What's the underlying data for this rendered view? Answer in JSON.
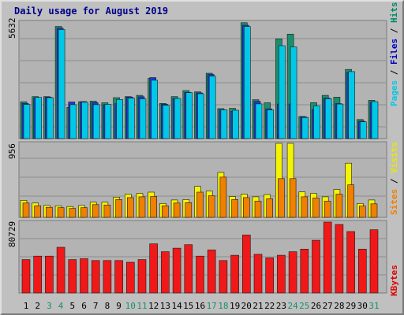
{
  "chart_data": {
    "type": "bar",
    "title": "Daily usage for August 2019",
    "categories": [
      "1",
      "2",
      "3",
      "4",
      "5",
      "6",
      "7",
      "8",
      "9",
      "10",
      "11",
      "12",
      "13",
      "14",
      "15",
      "16",
      "17",
      "18",
      "19",
      "20",
      "21",
      "22",
      "23",
      "24",
      "25",
      "26",
      "27",
      "28",
      "29",
      "30",
      "31"
    ],
    "weekend_days": [
      "3",
      "4",
      "10",
      "11",
      "17",
      "18",
      "24",
      "25",
      "31"
    ],
    "panels": [
      {
        "max_label": "5632",
        "ylim": [
          0,
          5632
        ],
        "grid": true,
        "legend": [
          {
            "text": "Pages",
            "color": "#00c8e8"
          },
          {
            "text": " / ",
            "color": "#000000"
          },
          {
            "text": "Files",
            "color": "#0000c0"
          },
          {
            "text": " / ",
            "color": "#000000"
          },
          {
            "text": "Hits",
            "color": "#008a68"
          }
        ],
        "series": [
          {
            "name": "Hits",
            "color": "#1a8f6e",
            "values": [
              1780,
              2030,
              2030,
              5420,
              1510,
              1780,
              1810,
              1730,
              1980,
              2030,
              2090,
              2910,
              1700,
              2030,
              2320,
              2260,
              3160,
              1450,
              1460,
              5600,
              1880,
              1730,
              4820,
              5050,
              1070,
              1740,
              2090,
              2000,
              3340,
              920,
              1850
            ]
          },
          {
            "name": "Files",
            "color": "#1a3ad8",
            "values": [
              1700,
              1970,
              2000,
              5340,
              1770,
              1790,
              1740,
              1640,
              1690,
              2010,
              2020,
              2950,
              1660,
              1940,
              2230,
              2210,
              3100,
              1390,
              1320,
              5480,
              1800,
              1440,
              1670,
              1670,
              1050,
              1400,
              1960,
              1690,
              3200,
              840,
              1760
            ]
          },
          {
            "name": "Pages",
            "color": "#00c8e8",
            "values": [
              1650,
              1990,
              1980,
              5270,
              1640,
              1760,
              1640,
              1650,
              1890,
              1960,
              1920,
              2820,
              1610,
              1940,
              2220,
              2170,
              3020,
              1390,
              1370,
              5420,
              1680,
              1390,
              4490,
              4430,
              1020,
              1570,
              1930,
              1670,
              3240,
              810,
              1790
            ]
          }
        ]
      },
      {
        "max_label": "956",
        "ylim": [
          0,
          956
        ],
        "grid": true,
        "legend": [
          {
            "text": "Sites",
            "color": "#f08000"
          },
          {
            "text": " / ",
            "color": "#000000"
          },
          {
            "text": "Visits",
            "color": "#e8e800"
          }
        ],
        "series": [
          {
            "name": "Visits",
            "color": "#f4f400",
            "values": [
              220,
              185,
              155,
              150,
              140,
              155,
              195,
              195,
              260,
              300,
              310,
              325,
              180,
              225,
              230,
              400,
              340,
              580,
              270,
              300,
              265,
              295,
              956,
              956,
              330,
              310,
              265,
              360,
              700,
              180,
              225
            ]
          },
          {
            "name": "Sites",
            "color": "#f08000",
            "values": [
              185,
              150,
              130,
              125,
              115,
              125,
              165,
              160,
              230,
              255,
              265,
              270,
              150,
              185,
              190,
              325,
              280,
              520,
              230,
              255,
              210,
              240,
              500,
              500,
              265,
              250,
              210,
              300,
              420,
              145,
              175
            ]
          }
        ]
      },
      {
        "max_label": "80729",
        "ylim": [
          0,
          80729
        ],
        "grid": true,
        "legend": [
          {
            "text": "KBytes",
            "color": "#e00000"
          }
        ],
        "series": [
          {
            "name": "KBytes",
            "color": "#f01818",
            "values": [
              38000,
              42000,
              42000,
              52000,
              38000,
              39000,
              37000,
              37000,
              37000,
              35000,
              38000,
              56000,
              47000,
              51000,
              55000,
              42000,
              49000,
              37000,
              43000,
              66000,
              44000,
              40000,
              43000,
              47000,
              50000,
              60000,
              80729,
              78000,
              70000,
              50000,
              72000
            ]
          }
        ]
      }
    ]
  }
}
